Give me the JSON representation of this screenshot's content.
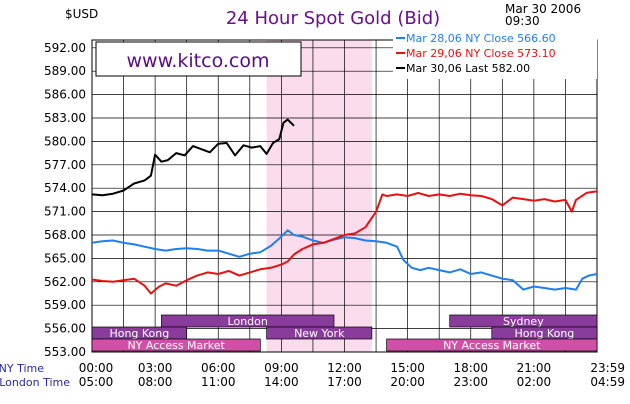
{
  "chart_data": {
    "type": "line",
    "title": "24 Hour Spot Gold (Bid)",
    "currency_label": "$USD",
    "date_label": "Mar 30 2006",
    "time_label": "09:30",
    "watermark": "www.kitco.com",
    "ylim": [
      553.0,
      593.0
    ],
    "y_ticks": [
      "592.00",
      "589.00",
      "586.00",
      "583.00",
      "580.00",
      "577.00",
      "574.00",
      "571.00",
      "568.00",
      "565.00",
      "562.00",
      "559.00",
      "556.00",
      "553.00"
    ],
    "x_range_hours": [
      0,
      24
    ],
    "ny_time_label": "NY Time",
    "london_time_label": "London Time",
    "ny_ticks": [
      "00:00",
      "03:00",
      "06:00",
      "09:00",
      "12:00",
      "15:00",
      "18:00",
      "21:00",
      "23:59"
    ],
    "london_ticks": [
      "05:00",
      "08:00",
      "11:00",
      "14:00",
      "17:00",
      "20:00",
      "23:00",
      "02:00",
      "04:59"
    ],
    "grid": true,
    "legend_position": "top-right",
    "highlight_band_hours": [
      8.3,
      13.3
    ],
    "session_bars": [
      {
        "name": "London",
        "start_hour": 3.3,
        "end_hour": 11.5,
        "row": 0
      },
      {
        "name": "Sydney",
        "start_hour": 17.0,
        "end_hour": 24.0,
        "row": 0
      },
      {
        "name": "Hong Kong",
        "start_hour": 0.0,
        "end_hour": 4.5,
        "row": 1
      },
      {
        "name": "New York",
        "start_hour": 8.3,
        "end_hour": 13.3,
        "row": 1
      },
      {
        "name": "Hong Kong",
        "start_hour": 19.0,
        "end_hour": 24.0,
        "row": 1
      },
      {
        "name": "NY Access Market",
        "start_hour": 0.0,
        "end_hour": 8.0,
        "row": 2
      },
      {
        "name": "NY Access Market",
        "start_hour": 14.0,
        "end_hour": 24.0,
        "row": 2
      }
    ],
    "series": [
      {
        "name": "Mar 28,06 NY Close 566.60",
        "color": "#1e7ff0",
        "points": [
          [
            0,
            567.0
          ],
          [
            0.5,
            567.2
          ],
          [
            1,
            567.3
          ],
          [
            1.5,
            567.0
          ],
          [
            2,
            566.8
          ],
          [
            2.5,
            566.5
          ],
          [
            3,
            566.2
          ],
          [
            3.5,
            566.0
          ],
          [
            4,
            566.2
          ],
          [
            4.5,
            566.3
          ],
          [
            5,
            566.2
          ],
          [
            5.5,
            566.0
          ],
          [
            6,
            566.0
          ],
          [
            6.5,
            565.6
          ],
          [
            7,
            565.2
          ],
          [
            7.5,
            565.6
          ],
          [
            8,
            565.8
          ],
          [
            8.5,
            566.6
          ],
          [
            9,
            567.8
          ],
          [
            9.3,
            568.6
          ],
          [
            9.6,
            568.0
          ],
          [
            10,
            567.8
          ],
          [
            10.5,
            567.3
          ],
          [
            11,
            567.0
          ],
          [
            11.5,
            567.4
          ],
          [
            12,
            567.7
          ],
          [
            12.5,
            567.6
          ],
          [
            13,
            567.3
          ],
          [
            13.5,
            567.2
          ],
          [
            14,
            567.0
          ],
          [
            14.5,
            566.5
          ],
          [
            14.8,
            564.8
          ],
          [
            15.2,
            563.8
          ],
          [
            15.6,
            563.5
          ],
          [
            16,
            563.8
          ],
          [
            16.5,
            563.5
          ],
          [
            17,
            563.2
          ],
          [
            17.5,
            563.6
          ],
          [
            18,
            563.0
          ],
          [
            18.5,
            563.2
          ],
          [
            19,
            562.8
          ],
          [
            19.5,
            562.4
          ],
          [
            20,
            562.2
          ],
          [
            20.5,
            561.0
          ],
          [
            21,
            561.4
          ],
          [
            21.5,
            561.2
          ],
          [
            22,
            561.0
          ],
          [
            22.5,
            561.2
          ],
          [
            23,
            561.0
          ],
          [
            23.3,
            562.4
          ],
          [
            23.6,
            562.8
          ],
          [
            24,
            563.0
          ]
        ]
      },
      {
        "name": "Mar 29,06 NY Close 573.10",
        "color": "#e81010",
        "points": [
          [
            0,
            562.3
          ],
          [
            0.5,
            562.1
          ],
          [
            1,
            562.0
          ],
          [
            1.5,
            562.2
          ],
          [
            2,
            562.4
          ],
          [
            2.5,
            561.5
          ],
          [
            2.8,
            560.5
          ],
          [
            3.2,
            561.4
          ],
          [
            3.5,
            561.8
          ],
          [
            4,
            561.5
          ],
          [
            4.5,
            562.2
          ],
          [
            5,
            562.8
          ],
          [
            5.5,
            563.2
          ],
          [
            6,
            563.0
          ],
          [
            6.5,
            563.4
          ],
          [
            7,
            562.8
          ],
          [
            7.5,
            563.2
          ],
          [
            8,
            563.6
          ],
          [
            8.5,
            563.8
          ],
          [
            9,
            564.2
          ],
          [
            9.3,
            564.6
          ],
          [
            9.6,
            565.5
          ],
          [
            10,
            566.2
          ],
          [
            10.5,
            566.8
          ],
          [
            11,
            567.0
          ],
          [
            11.5,
            567.5
          ],
          [
            12,
            568.0
          ],
          [
            12.5,
            568.2
          ],
          [
            13,
            569.0
          ],
          [
            13.5,
            571.0
          ],
          [
            13.8,
            573.2
          ],
          [
            14,
            573.0
          ],
          [
            14.5,
            573.2
          ],
          [
            15,
            573.0
          ],
          [
            15.5,
            573.4
          ],
          [
            16,
            573.0
          ],
          [
            16.5,
            573.2
          ],
          [
            17,
            573.0
          ],
          [
            17.5,
            573.3
          ],
          [
            18,
            573.1
          ],
          [
            18.5,
            573.0
          ],
          [
            19,
            572.6
          ],
          [
            19.5,
            571.8
          ],
          [
            20,
            572.8
          ],
          [
            20.5,
            572.6
          ],
          [
            21,
            572.4
          ],
          [
            21.5,
            572.6
          ],
          [
            22,
            572.3
          ],
          [
            22.5,
            572.5
          ],
          [
            22.8,
            571.0
          ],
          [
            23,
            572.5
          ],
          [
            23.5,
            573.4
          ],
          [
            24,
            573.6
          ]
        ]
      },
      {
        "name": "Mar 30,06 Last 582.00",
        "color": "#000000",
        "points": [
          [
            0,
            573.2
          ],
          [
            0.5,
            573.1
          ],
          [
            1,
            573.3
          ],
          [
            1.5,
            573.7
          ],
          [
            2,
            574.6
          ],
          [
            2.5,
            575.0
          ],
          [
            2.8,
            575.6
          ],
          [
            3.0,
            578.3
          ],
          [
            3.3,
            577.4
          ],
          [
            3.6,
            577.6
          ],
          [
            4.0,
            578.5
          ],
          [
            4.4,
            578.2
          ],
          [
            4.8,
            579.4
          ],
          [
            5.2,
            579.0
          ],
          [
            5.6,
            578.6
          ],
          [
            6.0,
            579.7
          ],
          [
            6.4,
            579.8
          ],
          [
            6.8,
            578.2
          ],
          [
            7.2,
            579.5
          ],
          [
            7.6,
            579.2
          ],
          [
            8.0,
            579.4
          ],
          [
            8.3,
            578.4
          ],
          [
            8.6,
            579.8
          ],
          [
            8.9,
            580.3
          ],
          [
            9.1,
            582.4
          ],
          [
            9.3,
            582.8
          ],
          [
            9.6,
            582.0
          ]
        ]
      }
    ]
  }
}
